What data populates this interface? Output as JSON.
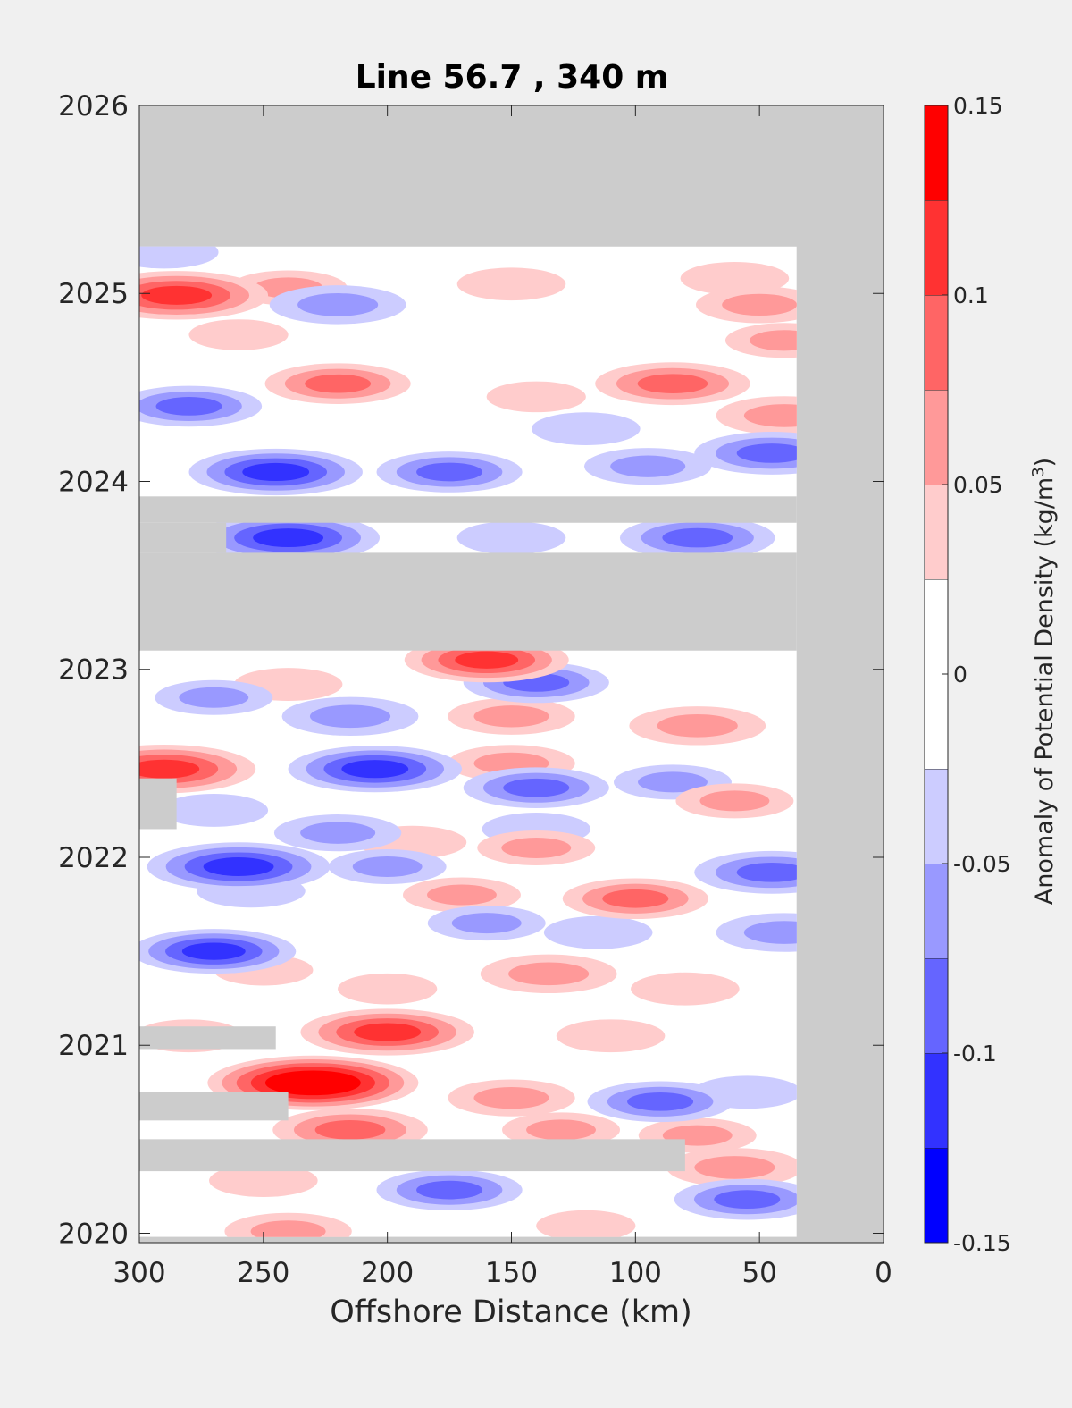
{
  "chart_data": {
    "type": "heatmap",
    "title": "Line 56.7 , 340 m",
    "xlabel": "Offshore Distance (km)",
    "x_direction": "reversed",
    "xlim": [
      0,
      300
    ],
    "ylim": [
      2019.95,
      2026
    ],
    "x_ticks": [
      "300",
      "250",
      "200",
      "150",
      "100",
      "50",
      "0"
    ],
    "y_ticks": [
      "2020",
      "2021",
      "2022",
      "2023",
      "2024",
      "2025",
      "2026"
    ],
    "colorbar": {
      "label_prefix": "Anomaly of Potential Density (kg/m",
      "label_sup": "3",
      "label_suffix": ")",
      "range": [
        -0.15,
        0.15
      ],
      "tick_labels": [
        "0.15",
        "0.1",
        "0.05",
        "0",
        "-0.05",
        "-0.1",
        "-0.15"
      ],
      "levels": [
        -0.15,
        -0.125,
        -0.1,
        -0.075,
        -0.05,
        -0.025,
        0.025,
        0.05,
        0.075,
        0.1,
        0.125,
        0.15
      ],
      "colors": [
        "#0000ff",
        "#3232ff",
        "#6565ff",
        "#9999ff",
        "#ccccff",
        "#ffffff",
        "#ffcccc",
        "#ff9999",
        "#ff6565",
        "#ff3232",
        "#ff0000"
      ]
    },
    "missing_color": "#cccccc",
    "data_extent": {
      "x_min_km": 35,
      "x_max_km": 300,
      "t_min": 2019.98,
      "t_max": 2025.25
    },
    "gaps": [
      {
        "t0": 2023.1,
        "t1": 2023.62,
        "x_from_km": 35,
        "x_to_km": 300
      },
      {
        "t0": 2023.78,
        "t1": 2023.92,
        "x_from_km": 35,
        "x_to_km": 300
      },
      {
        "t0": 2023.62,
        "t1": 2023.78,
        "x_from_km": 265,
        "x_to_km": 300
      },
      {
        "t0": 2022.15,
        "t1": 2022.42,
        "x_from_km": 285,
        "x_to_km": 300
      },
      {
        "t0": 2020.33,
        "t1": 2020.5,
        "x_from_km": 80,
        "x_to_km": 300
      },
      {
        "t0": 2020.6,
        "t1": 2020.75,
        "x_from_km": 240,
        "x_to_km": 300
      },
      {
        "t0": 2020.98,
        "t1": 2021.1,
        "x_from_km": 245,
        "x_to_km": 300
      }
    ],
    "anomalies": [
      {
        "x_km": 285,
        "t": 2024.99,
        "value": 0.12
      },
      {
        "x_km": 240,
        "t": 2025.03,
        "value": 0.05
      },
      {
        "x_km": 150,
        "t": 2025.05,
        "value": 0.04
      },
      {
        "x_km": 60,
        "t": 2025.08,
        "value": 0.04
      },
      {
        "x_km": 290,
        "t": 2025.22,
        "value": -0.04
      },
      {
        "x_km": 50,
        "t": 2024.94,
        "value": 0.06
      },
      {
        "x_km": 220,
        "t": 2024.94,
        "value": -0.07
      },
      {
        "x_km": 220,
        "t": 2024.52,
        "value": 0.08
      },
      {
        "x_km": 85,
        "t": 2024.52,
        "value": 0.09
      },
      {
        "x_km": 260,
        "t": 2024.78,
        "value": 0.03
      },
      {
        "x_km": 40,
        "t": 2024.75,
        "value": 0.05
      },
      {
        "x_km": 280,
        "t": 2024.4,
        "value": -0.08
      },
      {
        "x_km": 140,
        "t": 2024.45,
        "value": 0.03
      },
      {
        "x_km": 40,
        "t": 2024.35,
        "value": 0.07
      },
      {
        "x_km": 120,
        "t": 2024.28,
        "value": -0.04
      },
      {
        "x_km": 245,
        "t": 2024.05,
        "value": -0.11
      },
      {
        "x_km": 175,
        "t": 2024.05,
        "value": -0.08
      },
      {
        "x_km": 95,
        "t": 2024.08,
        "value": -0.06
      },
      {
        "x_km": 45,
        "t": 2024.15,
        "value": -0.09
      },
      {
        "x_km": 240,
        "t": 2023.7,
        "value": -0.12
      },
      {
        "x_km": 150,
        "t": 2023.7,
        "value": -0.04
      },
      {
        "x_km": 75,
        "t": 2023.7,
        "value": -0.09
      },
      {
        "x_km": 160,
        "t": 2023.05,
        "value": 0.1
      },
      {
        "x_km": 140,
        "t": 2022.93,
        "value": -0.08
      },
      {
        "x_km": 240,
        "t": 2022.92,
        "value": 0.04
      },
      {
        "x_km": 270,
        "t": 2022.85,
        "value": -0.05
      },
      {
        "x_km": 215,
        "t": 2022.75,
        "value": -0.07
      },
      {
        "x_km": 150,
        "t": 2022.75,
        "value": 0.06
      },
      {
        "x_km": 75,
        "t": 2022.7,
        "value": 0.07
      },
      {
        "x_km": 290,
        "t": 2022.47,
        "value": 0.12
      },
      {
        "x_km": 205,
        "t": 2022.47,
        "value": -0.11
      },
      {
        "x_km": 150,
        "t": 2022.5,
        "value": 0.06
      },
      {
        "x_km": 140,
        "t": 2022.37,
        "value": -0.08
      },
      {
        "x_km": 85,
        "t": 2022.4,
        "value": -0.05
      },
      {
        "x_km": 270,
        "t": 2022.25,
        "value": -0.04
      },
      {
        "x_km": 60,
        "t": 2022.3,
        "value": 0.05
      },
      {
        "x_km": 220,
        "t": 2022.13,
        "value": -0.06
      },
      {
        "x_km": 140,
        "t": 2022.15,
        "value": -0.04
      },
      {
        "x_km": 190,
        "t": 2022.08,
        "value": 0.04
      },
      {
        "x_km": 140,
        "t": 2022.05,
        "value": 0.05
      },
      {
        "x_km": 260,
        "t": 2021.95,
        "value": -0.12
      },
      {
        "x_km": 200,
        "t": 2021.95,
        "value": -0.05
      },
      {
        "x_km": 45,
        "t": 2021.92,
        "value": -0.09
      },
      {
        "x_km": 100,
        "t": 2021.78,
        "value": 0.08
      },
      {
        "x_km": 170,
        "t": 2021.8,
        "value": 0.05
      },
      {
        "x_km": 255,
        "t": 2021.82,
        "value": -0.04
      },
      {
        "x_km": 160,
        "t": 2021.65,
        "value": -0.05
      },
      {
        "x_km": 40,
        "t": 2021.6,
        "value": -0.07
      },
      {
        "x_km": 270,
        "t": 2021.5,
        "value": -0.1
      },
      {
        "x_km": 115,
        "t": 2021.6,
        "value": -0.04
      },
      {
        "x_km": 250,
        "t": 2021.4,
        "value": 0.03
      },
      {
        "x_km": 135,
        "t": 2021.38,
        "value": 0.07
      },
      {
        "x_km": 80,
        "t": 2021.3,
        "value": 0.04
      },
      {
        "x_km": 200,
        "t": 2021.3,
        "value": 0.03
      },
      {
        "x_km": 200,
        "t": 2021.07,
        "value": 0.11
      },
      {
        "x_km": 110,
        "t": 2021.05,
        "value": 0.04
      },
      {
        "x_km": 280,
        "t": 2021.05,
        "value": 0.04
      },
      {
        "x_km": 230,
        "t": 2020.8,
        "value": 0.15
      },
      {
        "x_km": 150,
        "t": 2020.72,
        "value": 0.06
      },
      {
        "x_km": 215,
        "t": 2020.55,
        "value": 0.09
      },
      {
        "x_km": 130,
        "t": 2020.55,
        "value": 0.05
      },
      {
        "x_km": 90,
        "t": 2020.7,
        "value": -0.08
      },
      {
        "x_km": 55,
        "t": 2020.75,
        "value": -0.04
      },
      {
        "x_km": 75,
        "t": 2020.52,
        "value": 0.05
      },
      {
        "x_km": 60,
        "t": 2020.35,
        "value": 0.07
      },
      {
        "x_km": 175,
        "t": 2020.23,
        "value": -0.08
      },
      {
        "x_km": 55,
        "t": 2020.18,
        "value": -0.08
      },
      {
        "x_km": 250,
        "t": 2020.28,
        "value": 0.04
      },
      {
        "x_km": 240,
        "t": 2020.01,
        "value": 0.06
      },
      {
        "x_km": 120,
        "t": 2020.04,
        "value": 0.03
      }
    ]
  }
}
